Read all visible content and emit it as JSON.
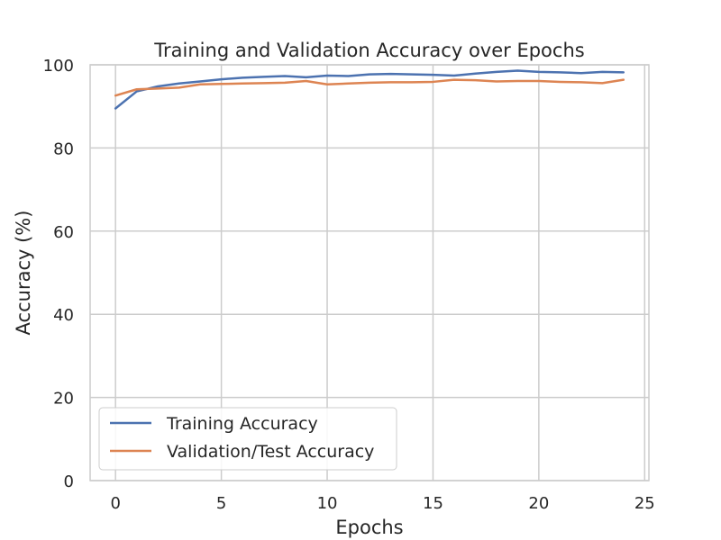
{
  "chart_data": {
    "type": "line",
    "title": "Training and Validation Accuracy over Epochs",
    "xlabel": "Epochs",
    "ylabel": "Accuracy (%)",
    "xlim": [
      -1.2,
      25.2
    ],
    "ylim": [
      0,
      100
    ],
    "xticks": [
      0,
      5,
      10,
      15,
      20,
      25
    ],
    "yticks": [
      0,
      20,
      40,
      60,
      80,
      100
    ],
    "grid": true,
    "legend_position": "lower-left",
    "series": [
      {
        "name": "Training Accuracy",
        "color": "#4c72b0",
        "x": [
          0,
          1,
          2,
          3,
          4,
          5,
          6,
          7,
          8,
          9,
          10,
          11,
          12,
          13,
          14,
          15,
          16,
          17,
          18,
          19,
          20,
          21,
          22,
          23,
          24
        ],
        "values": [
          89.5,
          93.6,
          94.8,
          95.5,
          96.0,
          96.5,
          96.9,
          97.1,
          97.3,
          97.0,
          97.4,
          97.3,
          97.7,
          97.8,
          97.7,
          97.6,
          97.4,
          97.9,
          98.3,
          98.6,
          98.3,
          98.2,
          98.0,
          98.3,
          98.2
        ]
      },
      {
        "name": "Validation/Test Accuracy",
        "color": "#dd8452",
        "x": [
          0,
          1,
          2,
          3,
          4,
          5,
          6,
          7,
          8,
          9,
          10,
          11,
          12,
          13,
          14,
          15,
          16,
          17,
          18,
          19,
          20,
          21,
          22,
          23,
          24
        ],
        "values": [
          92.6,
          94.1,
          94.3,
          94.5,
          95.3,
          95.4,
          95.5,
          95.6,
          95.7,
          96.1,
          95.3,
          95.5,
          95.7,
          95.8,
          95.8,
          95.9,
          96.4,
          96.3,
          96.0,
          96.1,
          96.1,
          95.9,
          95.8,
          95.6,
          96.4
        ]
      }
    ]
  }
}
